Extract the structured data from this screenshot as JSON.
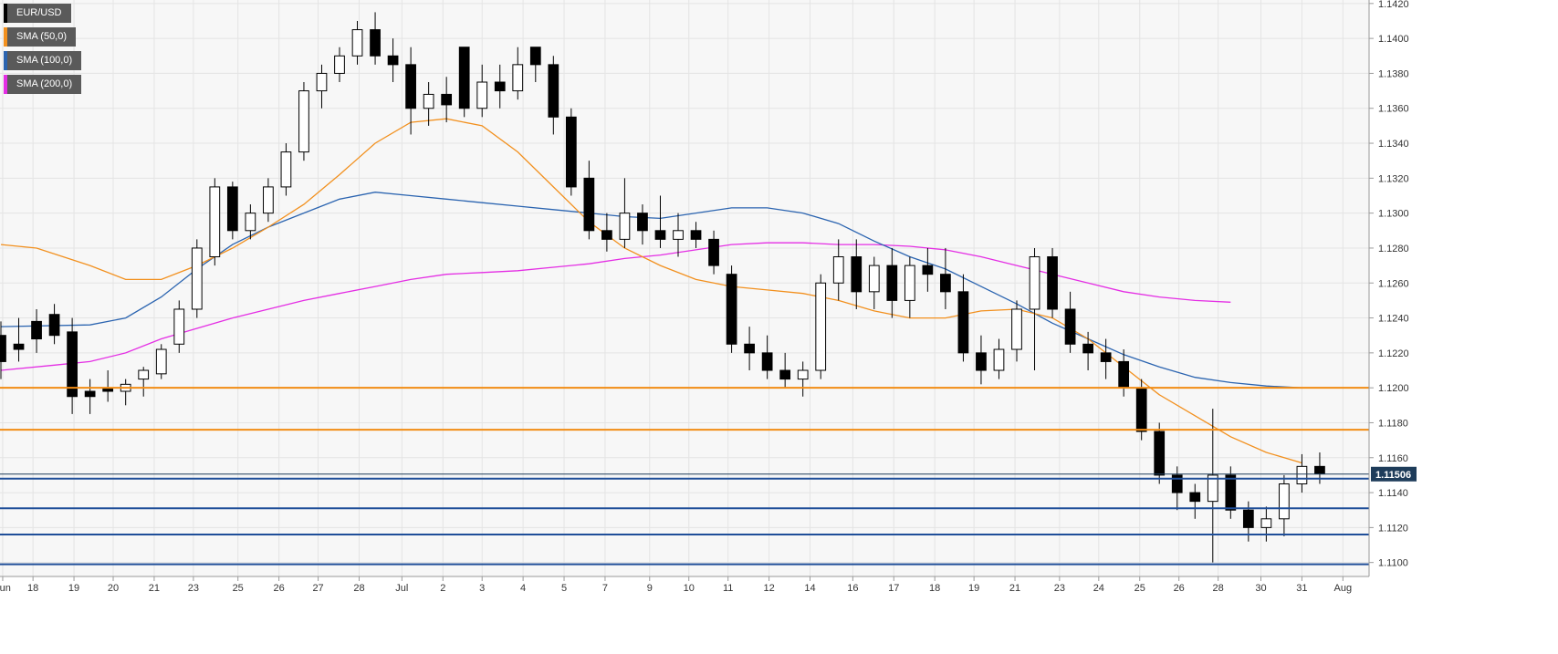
{
  "colors": {
    "background": "#f7f7f7",
    "grid": "#e4e4e4",
    "axis": "#9a9a9a",
    "axis_text": "#333333",
    "candle": "#000000",
    "sma50": "#f2901e",
    "sma100": "#2b64b0",
    "sma200": "#e42ee4",
    "resistance": "#f28c14",
    "support": "#1f4e99",
    "price_tag": "#1e3c5a"
  },
  "legend": [
    {
      "label": "EUR/USD",
      "color": "#000000"
    },
    {
      "label": "SMA (50,0)",
      "color": "#f2901e"
    },
    {
      "label": "SMA (100,0)",
      "color": "#2b64b0"
    },
    {
      "label": "SMA (200,0)",
      "color": "#e42ee4"
    }
  ],
  "current_price_label": "1.11506",
  "chart_data": {
    "type": "candlestick",
    "title": "",
    "symbol": "EUR/USD",
    "timeframe": "hourly",
    "ylim": [
      1.1092,
      1.1422
    ],
    "x_range": [
      0,
      73
    ],
    "y_ticks": [
      "1.1100",
      "1.1120",
      "1.1140",
      "1.1160",
      "1.1180",
      "1.1200",
      "1.1220",
      "1.1240",
      "1.1260",
      "1.1280",
      "1.1300",
      "1.1320",
      "1.1340",
      "1.1360",
      "1.1380",
      "1.1400",
      "1.1420"
    ],
    "x_ticks": [
      {
        "label": "Jun",
        "x": 0.1
      },
      {
        "label": "18",
        "x": 1.8
      },
      {
        "label": "19",
        "x": 4.1
      },
      {
        "label": "20",
        "x": 6.3
      },
      {
        "label": "21",
        "x": 8.6
      },
      {
        "label": "23",
        "x": 10.8
      },
      {
        "label": "25",
        "x": 13.3
      },
      {
        "label": "26",
        "x": 15.6
      },
      {
        "label": "27",
        "x": 17.8
      },
      {
        "label": "28",
        "x": 20.1
      },
      {
        "label": "Jul",
        "x": 22.5
      },
      {
        "label": "2",
        "x": 24.8
      },
      {
        "label": "3",
        "x": 27.0
      },
      {
        "label": "4",
        "x": 29.3
      },
      {
        "label": "5",
        "x": 31.6
      },
      {
        "label": "7",
        "x": 33.9
      },
      {
        "label": "9",
        "x": 36.4
      },
      {
        "label": "10",
        "x": 38.6
      },
      {
        "label": "11",
        "x": 40.8
      },
      {
        "label": "12",
        "x": 43.1
      },
      {
        "label": "14",
        "x": 45.4
      },
      {
        "label": "16",
        "x": 47.8
      },
      {
        "label": "17",
        "x": 50.1
      },
      {
        "label": "18",
        "x": 52.4
      },
      {
        "label": "19",
        "x": 54.6
      },
      {
        "label": "21",
        "x": 56.9
      },
      {
        "label": "23",
        "x": 59.4
      },
      {
        "label": "24",
        "x": 61.6
      },
      {
        "label": "25",
        "x": 63.9
      },
      {
        "label": "26",
        "x": 66.1
      },
      {
        "label": "28",
        "x": 68.3
      },
      {
        "label": "30",
        "x": 70.7
      },
      {
        "label": "31",
        "x": 73.0
      },
      {
        "label": "Aug",
        "x": 75.3
      }
    ],
    "candles": [
      [
        1.123,
        1.1238,
        1.1205,
        1.1215
      ],
      [
        1.1225,
        1.124,
        1.1215,
        1.1222
      ],
      [
        1.1238,
        1.1245,
        1.122,
        1.1228
      ],
      [
        1.1242,
        1.1248,
        1.1225,
        1.123
      ],
      [
        1.1232,
        1.124,
        1.1185,
        1.1195
      ],
      [
        1.1198,
        1.1205,
        1.1185,
        1.1195
      ],
      [
        1.12,
        1.121,
        1.1192,
        1.1198
      ],
      [
        1.1198,
        1.1205,
        1.119,
        1.1202
      ],
      [
        1.1205,
        1.1212,
        1.1195,
        1.121
      ],
      [
        1.1208,
        1.1225,
        1.1205,
        1.1222
      ],
      [
        1.1225,
        1.125,
        1.122,
        1.1245
      ],
      [
        1.1245,
        1.1285,
        1.124,
        1.128
      ],
      [
        1.1275,
        1.132,
        1.127,
        1.1315
      ],
      [
        1.1315,
        1.1318,
        1.1285,
        1.129
      ],
      [
        1.129,
        1.1305,
        1.1285,
        1.13
      ],
      [
        1.13,
        1.132,
        1.1295,
        1.1315
      ],
      [
        1.1315,
        1.134,
        1.131,
        1.1335
      ],
      [
        1.1335,
        1.1375,
        1.133,
        1.137
      ],
      [
        1.137,
        1.1385,
        1.136,
        1.138
      ],
      [
        1.138,
        1.1395,
        1.1375,
        1.139
      ],
      [
        1.139,
        1.141,
        1.1385,
        1.1405
      ],
      [
        1.1405,
        1.1415,
        1.1385,
        1.139
      ],
      [
        1.139,
        1.14,
        1.1375,
        1.1385
      ],
      [
        1.1385,
        1.1395,
        1.1345,
        1.136
      ],
      [
        1.136,
        1.1375,
        1.135,
        1.1368
      ],
      [
        1.1368,
        1.1378,
        1.1352,
        1.1362
      ],
      [
        1.1395,
        1.1395,
        1.1355,
        1.136
      ],
      [
        1.136,
        1.1385,
        1.1355,
        1.1375
      ],
      [
        1.1375,
        1.1385,
        1.136,
        1.137
      ],
      [
        1.137,
        1.1395,
        1.1365,
        1.1385
      ],
      [
        1.1395,
        1.1395,
        1.1375,
        1.1385
      ],
      [
        1.1385,
        1.139,
        1.1345,
        1.1355
      ],
      [
        1.1355,
        1.136,
        1.131,
        1.1315
      ],
      [
        1.132,
        1.133,
        1.1285,
        1.129
      ],
      [
        1.129,
        1.13,
        1.1278,
        1.1285
      ],
      [
        1.1285,
        1.132,
        1.128,
        1.13
      ],
      [
        1.13,
        1.1305,
        1.1282,
        1.129
      ],
      [
        1.129,
        1.131,
        1.128,
        1.1285
      ],
      [
        1.1285,
        1.13,
        1.1275,
        1.129
      ],
      [
        1.129,
        1.1295,
        1.128,
        1.1285
      ],
      [
        1.1285,
        1.129,
        1.1265,
        1.127
      ],
      [
        1.1265,
        1.127,
        1.122,
        1.1225
      ],
      [
        1.1225,
        1.1235,
        1.121,
        1.122
      ],
      [
        1.122,
        1.123,
        1.1205,
        1.121
      ],
      [
        1.121,
        1.122,
        1.12,
        1.1205
      ],
      [
        1.1205,
        1.1215,
        1.1195,
        1.121
      ],
      [
        1.121,
        1.1265,
        1.1205,
        1.126
      ],
      [
        1.126,
        1.1285,
        1.125,
        1.1275
      ],
      [
        1.1275,
        1.1285,
        1.1245,
        1.1255
      ],
      [
        1.1255,
        1.1275,
        1.1245,
        1.127
      ],
      [
        1.127,
        1.128,
        1.124,
        1.125
      ],
      [
        1.125,
        1.1275,
        1.124,
        1.127
      ],
      [
        1.127,
        1.128,
        1.1255,
        1.1265
      ],
      [
        1.1265,
        1.128,
        1.1245,
        1.1255
      ],
      [
        1.1255,
        1.1265,
        1.1215,
        1.122
      ],
      [
        1.122,
        1.123,
        1.1202,
        1.121
      ],
      [
        1.121,
        1.1228,
        1.1205,
        1.1222
      ],
      [
        1.1222,
        1.125,
        1.1215,
        1.1245
      ],
      [
        1.1245,
        1.128,
        1.121,
        1.1275
      ],
      [
        1.1275,
        1.128,
        1.124,
        1.1245
      ],
      [
        1.1245,
        1.1255,
        1.122,
        1.1225
      ],
      [
        1.1225,
        1.1232,
        1.121,
        1.122
      ],
      [
        1.122,
        1.1228,
        1.1205,
        1.1215
      ],
      [
        1.1215,
        1.1222,
        1.1195,
        1.12
      ],
      [
        1.12,
        1.1205,
        1.117,
        1.1175
      ],
      [
        1.1175,
        1.118,
        1.1145,
        1.115
      ],
      [
        1.115,
        1.1155,
        1.113,
        1.114
      ],
      [
        1.114,
        1.1145,
        1.1125,
        1.1135
      ],
      [
        1.1135,
        1.1188,
        1.11,
        1.115
      ],
      [
        1.115,
        1.1155,
        1.1125,
        1.113
      ],
      [
        1.113,
        1.1135,
        1.1112,
        1.112
      ],
      [
        1.112,
        1.1132,
        1.1112,
        1.1125
      ],
      [
        1.1125,
        1.115,
        1.1115,
        1.1145
      ],
      [
        1.1145,
        1.1162,
        1.114,
        1.1155
      ],
      [
        1.1155,
        1.1163,
        1.1145,
        1.1151
      ]
    ],
    "sma50": [
      [
        0,
        1.1282
      ],
      [
        2,
        1.128
      ],
      [
        5,
        1.127
      ],
      [
        7,
        1.1262
      ],
      [
        9,
        1.1262
      ],
      [
        11,
        1.127
      ],
      [
        13,
        1.128
      ],
      [
        15,
        1.1292
      ],
      [
        17,
        1.1305
      ],
      [
        19,
        1.1322
      ],
      [
        21,
        1.134
      ],
      [
        23,
        1.1352
      ],
      [
        25,
        1.1354
      ],
      [
        27,
        1.135
      ],
      [
        29,
        1.1335
      ],
      [
        31,
        1.1315
      ],
      [
        33,
        1.1295
      ],
      [
        35,
        1.128
      ],
      [
        37,
        1.127
      ],
      [
        39,
        1.1262
      ],
      [
        41,
        1.1258
      ],
      [
        43,
        1.1256
      ],
      [
        45,
        1.1254
      ],
      [
        47,
        1.125
      ],
      [
        49,
        1.1244
      ],
      [
        51,
        1.124
      ],
      [
        53,
        1.124
      ],
      [
        55,
        1.1244
      ],
      [
        57,
        1.1245
      ],
      [
        59,
        1.124
      ],
      [
        61,
        1.1228
      ],
      [
        63,
        1.1212
      ],
      [
        65,
        1.1196
      ],
      [
        67,
        1.1184
      ],
      [
        69,
        1.1172
      ],
      [
        71,
        1.1163
      ],
      [
        73,
        1.1157
      ]
    ],
    "sma100": [
      [
        0,
        1.1235
      ],
      [
        5,
        1.1236
      ],
      [
        7,
        1.124
      ],
      [
        9,
        1.1252
      ],
      [
        11,
        1.1268
      ],
      [
        13,
        1.1282
      ],
      [
        15,
        1.1292
      ],
      [
        17,
        1.13
      ],
      [
        19,
        1.1308
      ],
      [
        21,
        1.1312
      ],
      [
        23,
        1.131
      ],
      [
        25,
        1.1308
      ],
      [
        27,
        1.1306
      ],
      [
        29,
        1.1304
      ],
      [
        31,
        1.1302
      ],
      [
        33,
        1.13
      ],
      [
        35,
        1.1298
      ],
      [
        37,
        1.1297
      ],
      [
        39,
        1.13
      ],
      [
        41,
        1.1303
      ],
      [
        43,
        1.1303
      ],
      [
        45,
        1.13
      ],
      [
        47,
        1.1294
      ],
      [
        49,
        1.1284
      ],
      [
        51,
        1.1275
      ],
      [
        53,
        1.1268
      ],
      [
        55,
        1.1258
      ],
      [
        57,
        1.1248
      ],
      [
        59,
        1.1237
      ],
      [
        61,
        1.1228
      ],
      [
        63,
        1.1219
      ],
      [
        65,
        1.1212
      ],
      [
        67,
        1.1206
      ],
      [
        69,
        1.1203
      ],
      [
        71,
        1.1201
      ],
      [
        73,
        1.12
      ]
    ],
    "sma200": [
      [
        0,
        1.121
      ],
      [
        3,
        1.1213
      ],
      [
        5,
        1.1215
      ],
      [
        7,
        1.122
      ],
      [
        9,
        1.1228
      ],
      [
        11,
        1.1234
      ],
      [
        13,
        1.124
      ],
      [
        15,
        1.1245
      ],
      [
        17,
        1.125
      ],
      [
        19,
        1.1254
      ],
      [
        21,
        1.1258
      ],
      [
        23,
        1.1262
      ],
      [
        25,
        1.1265
      ],
      [
        27,
        1.1266
      ],
      [
        29,
        1.1267
      ],
      [
        31,
        1.1269
      ],
      [
        33,
        1.1271
      ],
      [
        35,
        1.1274
      ],
      [
        37,
        1.1276
      ],
      [
        39,
        1.1279
      ],
      [
        41,
        1.1282
      ],
      [
        43,
        1.1283
      ],
      [
        45,
        1.1283
      ],
      [
        47,
        1.1282
      ],
      [
        49,
        1.1282
      ],
      [
        51,
        1.1281
      ],
      [
        53,
        1.1279
      ],
      [
        55,
        1.1275
      ],
      [
        57,
        1.127
      ],
      [
        59,
        1.1265
      ],
      [
        61,
        1.126
      ],
      [
        63,
        1.1255
      ],
      [
        65,
        1.1252
      ],
      [
        67,
        1.125
      ],
      [
        69,
        1.1249
      ]
    ],
    "horizontal_lines": [
      {
        "y": 1.12,
        "color": "orange"
      },
      {
        "y": 1.1176,
        "color": "orange"
      },
      {
        "y": 1.1148,
        "color": "blue"
      },
      {
        "y": 1.1131,
        "color": "blue"
      },
      {
        "y": 1.1116,
        "color": "blue"
      },
      {
        "y": 1.1099,
        "color": "blue"
      }
    ],
    "current_price": 1.11506,
    "grid": true,
    "legend_position": "top-left"
  }
}
